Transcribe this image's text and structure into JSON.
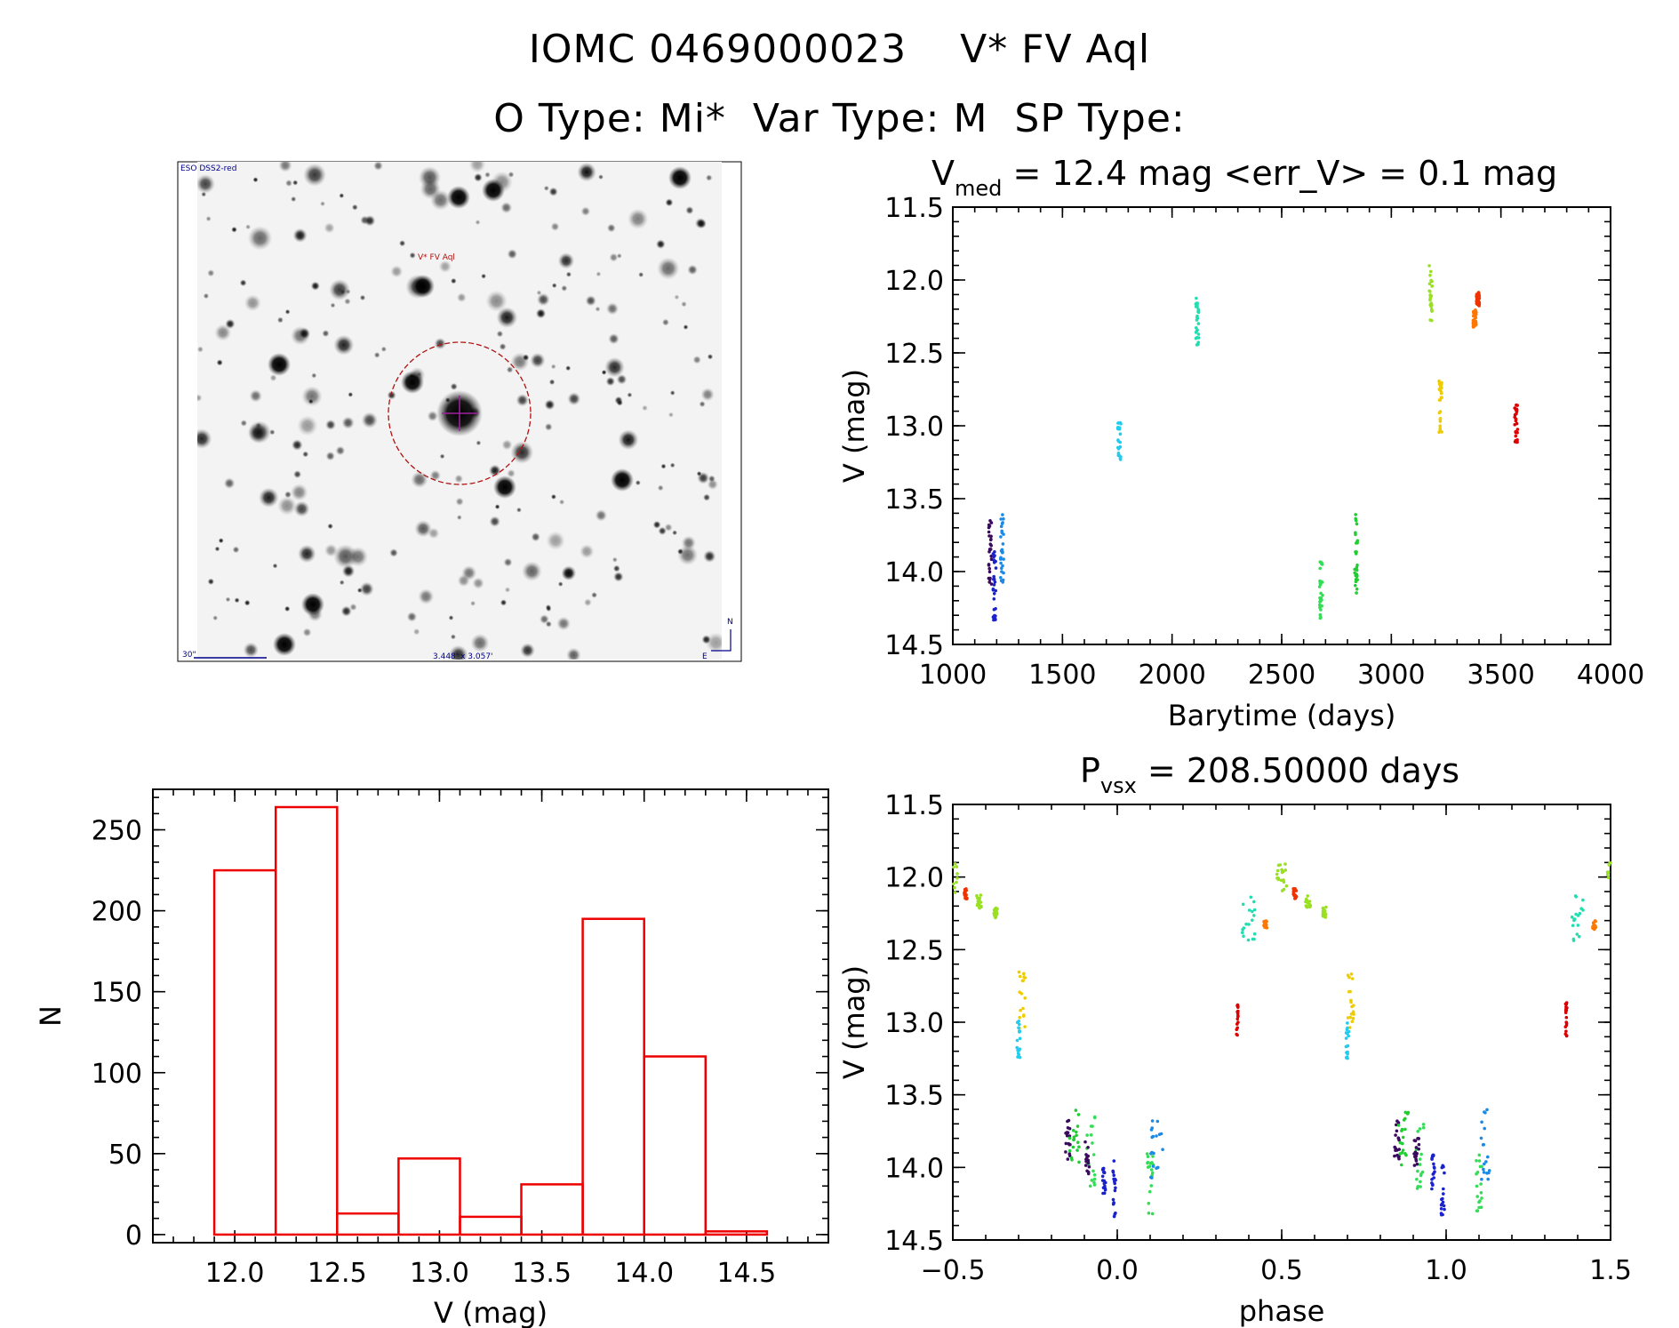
{
  "header": {
    "title_line1": "IOMC 0469000023    V* FV Aql",
    "title_line2": "O Type: Mi*  Var Type: M  SP Type:"
  },
  "image_panel": {
    "top_left_label": "ESO DSS2-red",
    "target_label": "V* FV Aql",
    "scale_label": "30\"",
    "fov_label": "3.448' x 3.057'",
    "north_label": "N",
    "east_label": "E"
  },
  "chart_data": [
    {
      "id": "light-curve",
      "type": "scatter",
      "title_prefix": "V",
      "title_sub": "med",
      "title_rest": " = 12.4 mag <err_V> = 0.1 mag",
      "xlabel": "Barytime (days)",
      "ylabel": "V (mag)",
      "xlim": [
        1000,
        4000
      ],
      "ylim": [
        11.5,
        14.5
      ],
      "y_inverted": true,
      "x_ticks": [
        1000,
        1500,
        2000,
        2500,
        3000,
        3500,
        4000
      ],
      "x_tick_labels": [
        "1000",
        "1500",
        "2000",
        "2500",
        "3000",
        "3500",
        "4000"
      ],
      "y_ticks": [
        11.5,
        12.0,
        12.5,
        13.0,
        13.5,
        14.0,
        14.5
      ],
      "y_tick_labels": [
        "11.5",
        "12.0",
        "12.5",
        "13.0",
        "13.5",
        "14.0",
        "14.5"
      ],
      "groups": [
        {
          "t": 1170,
          "ymin": 13.65,
          "ymax": 14.1,
          "color": "#3a0a5e"
        },
        {
          "t": 1190,
          "ymin": 13.85,
          "ymax": 14.35,
          "color": "#1a22cc"
        },
        {
          "t": 1225,
          "ymin": 13.6,
          "ymax": 14.1,
          "color": "#1a8ae6"
        },
        {
          "t": 1760,
          "ymin": 12.97,
          "ymax": 13.25,
          "color": "#22ccee"
        },
        {
          "t": 2115,
          "ymin": 12.12,
          "ymax": 12.45,
          "color": "#22ddb0"
        },
        {
          "t": 2680,
          "ymin": 13.9,
          "ymax": 14.32,
          "color": "#33dd55"
        },
        {
          "t": 2840,
          "ymin": 13.6,
          "ymax": 14.15,
          "color": "#22cc33"
        },
        {
          "t": 3180,
          "ymin": 11.9,
          "ymax": 12.28,
          "color": "#99e022"
        },
        {
          "t": 3225,
          "ymin": 12.65,
          "ymax": 13.05,
          "color": "#eecc00"
        },
        {
          "t": 3380,
          "ymin": 12.2,
          "ymax": 12.33,
          "color": "#ff7700"
        },
        {
          "t": 3395,
          "ymin": 12.08,
          "ymax": 12.18,
          "color": "#ee3300"
        },
        {
          "t": 3570,
          "ymin": 12.85,
          "ymax": 13.12,
          "color": "#dd0000"
        }
      ]
    },
    {
      "id": "histogram",
      "type": "bar",
      "xlabel": "V (mag)",
      "ylabel": "N",
      "xlim": [
        11.6,
        14.9
      ],
      "ylim": [
        -5,
        275
      ],
      "x_ticks": [
        12.0,
        12.5,
        13.0,
        13.5,
        14.0,
        14.5
      ],
      "x_tick_labels": [
        "12.0",
        "12.5",
        "13.0",
        "13.5",
        "14.0",
        "14.5"
      ],
      "y_ticks": [
        0,
        50,
        100,
        150,
        200,
        250
      ],
      "y_tick_labels": [
        "0",
        "50",
        "100",
        "150",
        "200",
        "250"
      ],
      "bin_edges": [
        11.9,
        12.2,
        12.5,
        12.8,
        13.1,
        13.4,
        13.7,
        14.0,
        14.3,
        14.6
      ],
      "values": [
        225,
        264,
        13,
        47,
        11,
        31,
        195,
        110,
        2
      ]
    },
    {
      "id": "phase-curve",
      "type": "scatter",
      "title_prefix": "P",
      "title_sub": "vsx",
      "title_rest": " = 208.50000 days",
      "xlabel": "phase",
      "ylabel": "V (mag)",
      "xlim": [
        -0.5,
        1.5
      ],
      "ylim": [
        11.5,
        14.5
      ],
      "y_inverted": true,
      "period_days": 208.5,
      "x_ticks": [
        -0.5,
        0.0,
        0.5,
        1.0,
        1.5
      ],
      "x_tick_labels": [
        "−0.5",
        "0.0",
        "0.5",
        "1.0",
        "1.5"
      ],
      "y_ticks": [
        11.5,
        12.0,
        12.5,
        13.0,
        13.5,
        14.0,
        14.5
      ],
      "y_tick_labels": [
        "11.5",
        "12.0",
        "12.5",
        "13.0",
        "13.5",
        "14.0",
        "14.5"
      ],
      "groups": [
        {
          "phase": 0.5,
          "w": 0.03,
          "ymin": 11.9,
          "ymax": 12.12,
          "color": "#99e022"
        },
        {
          "phase": 0.58,
          "w": 0.015,
          "ymin": 12.12,
          "ymax": 12.22,
          "color": "#99e022"
        },
        {
          "phase": 0.63,
          "w": 0.01,
          "ymin": 12.2,
          "ymax": 12.28,
          "color": "#99e022"
        },
        {
          "phase": 0.45,
          "w": 0.01,
          "ymin": 12.3,
          "ymax": 12.36,
          "color": "#ff7700"
        },
        {
          "phase": 0.54,
          "w": 0.01,
          "ymin": 12.08,
          "ymax": 12.15,
          "color": "#ee3300"
        },
        {
          "phase": 0.4,
          "w": 0.04,
          "ymin": 12.12,
          "ymax": 12.45,
          "color": "#22ddb0"
        },
        {
          "phase": 0.71,
          "w": 0.02,
          "ymin": 12.65,
          "ymax": 13.05,
          "color": "#eecc00"
        },
        {
          "phase": 0.7,
          "w": 0.01,
          "ymin": 12.97,
          "ymax": 13.25,
          "color": "#22ccee"
        },
        {
          "phase": 0.365,
          "w": 0.005,
          "ymin": 12.85,
          "ymax": 13.12,
          "color": "#dd0000"
        },
        {
          "phase": 0.85,
          "w": 0.015,
          "ymin": 13.65,
          "ymax": 13.95,
          "color": "#3a0a5e"
        },
        {
          "phase": 0.87,
          "w": 0.03,
          "ymin": 13.6,
          "ymax": 14.0,
          "color": "#22cc33"
        },
        {
          "phase": 0.92,
          "w": 0.025,
          "ymin": 13.65,
          "ymax": 14.15,
          "color": "#33dd55"
        },
        {
          "phase": 0.91,
          "w": 0.015,
          "ymin": 13.8,
          "ymax": 14.05,
          "color": "#3a0a5e"
        },
        {
          "phase": 0.96,
          "w": 0.01,
          "ymin": 13.9,
          "ymax": 14.18,
          "color": "#1a22cc"
        },
        {
          "phase": 0.99,
          "w": 0.01,
          "ymin": 13.95,
          "ymax": 14.35,
          "color": "#1a22cc"
        },
        {
          "phase": 1.1,
          "w": 0.02,
          "ymin": 13.9,
          "ymax": 14.32,
          "color": "#33dd55"
        },
        {
          "phase": 1.12,
          "w": 0.04,
          "ymin": 13.6,
          "ymax": 14.1,
          "color": "#1a8ae6"
        }
      ]
    }
  ]
}
